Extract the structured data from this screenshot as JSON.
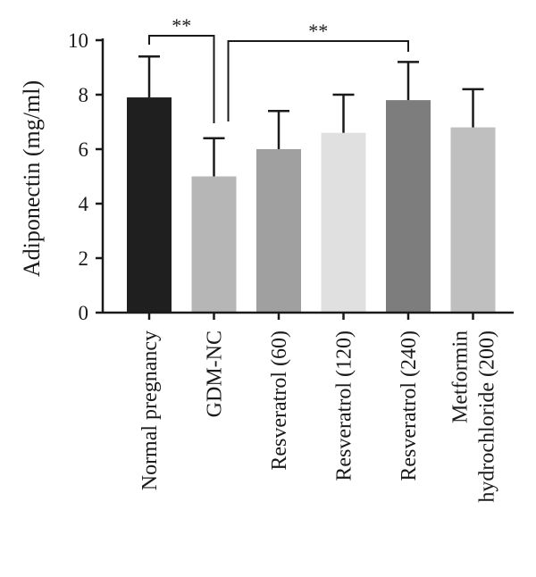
{
  "chart_data": {
    "type": "bar",
    "title": "",
    "xlabel": "",
    "ylabel": "Adiponectin (mg/ml)",
    "ylim": [
      0,
      10
    ],
    "yticks": [
      0,
      2,
      4,
      6,
      8,
      10
    ],
    "grid": false,
    "categories": [
      [
        "Normal pregnancy"
      ],
      [
        "GDM-NC"
      ],
      [
        "Resveratrol (60)"
      ],
      [
        "Resveratrol (120)"
      ],
      [
        "Resveratrol (240)"
      ],
      [
        "Metformin",
        "hydrochloride (200)"
      ]
    ],
    "values": [
      7.9,
      5.0,
      6.0,
      6.6,
      7.8,
      6.8
    ],
    "errors": [
      1.5,
      1.4,
      1.4,
      1.4,
      1.4,
      1.4
    ],
    "colors": [
      "#1f1f1f",
      "#b6b6b6",
      "#a0a0a0",
      "#e0e0e0",
      "#7d7d7d",
      "#bfbfbf"
    ],
    "significance": [
      {
        "from": 0,
        "to": 1,
        "label": "**"
      },
      {
        "from": 1,
        "to": 4,
        "label": "**"
      }
    ]
  }
}
